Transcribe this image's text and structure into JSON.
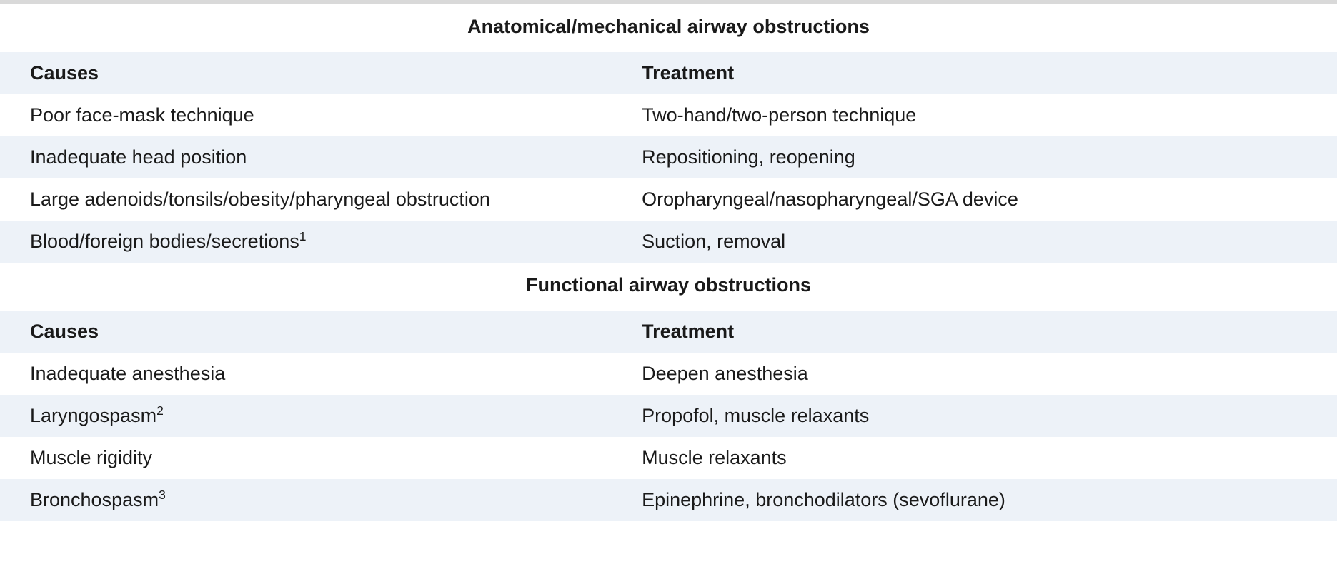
{
  "table": {
    "background_color": "#ffffff",
    "alt_row_color": "#edf2f8",
    "text_color": "#1a1a1a",
    "border_top_color": "#d9d9d9",
    "font_size_pt": 20,
    "sections": [
      {
        "title": "Anatomical/mechanical airway obstructions",
        "columns": {
          "left": "Causes",
          "right": "Treatment"
        },
        "rows": [
          {
            "cause": "Poor face-mask technique",
            "cause_sup": null,
            "treatment": "Two-hand/two-person technique"
          },
          {
            "cause": "Inadequate head position",
            "cause_sup": null,
            "treatment": "Repositioning, reopening"
          },
          {
            "cause": "Large adenoids/tonsils/obesity/pharyngeal obstruction",
            "cause_sup": null,
            "treatment": "Oropharyngeal/nasopharyngeal/SGA device"
          },
          {
            "cause": "Blood/foreign bodies/secretions",
            "cause_sup": "1",
            "treatment": "Suction, removal"
          }
        ]
      },
      {
        "title": "Functional airway obstructions",
        "columns": {
          "left": "Causes",
          "right": "Treatment"
        },
        "rows": [
          {
            "cause": "Inadequate anesthesia",
            "cause_sup": null,
            "treatment": "Deepen anesthesia"
          },
          {
            "cause": "Laryngospasm",
            "cause_sup": "2",
            "treatment": "Propofol, muscle relaxants"
          },
          {
            "cause": "Muscle rigidity",
            "cause_sup": null,
            "treatment": "Muscle relaxants"
          },
          {
            "cause": "Bronchospasm",
            "cause_sup": "3",
            "treatment": "Epinephrine, bronchodilators (sevoflurane)"
          }
        ]
      }
    ]
  }
}
